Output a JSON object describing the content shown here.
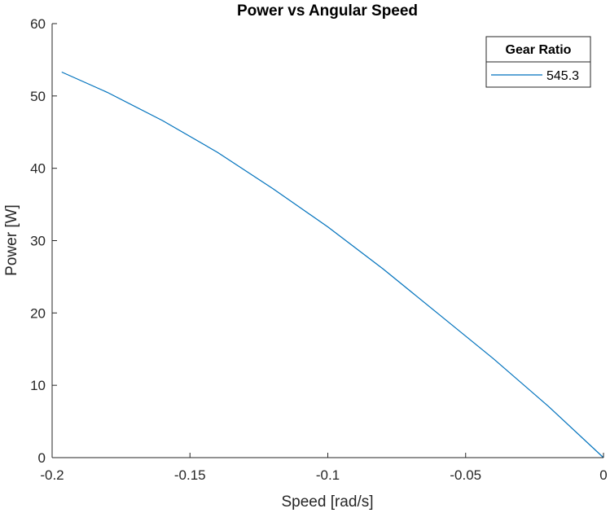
{
  "chart_data": {
    "type": "line",
    "title": "Power vs Angular Speed",
    "xlabel": "Speed [rad/s]",
    "ylabel": "Power [W]",
    "xlim": [
      -0.2,
      0
    ],
    "ylim": [
      0,
      60
    ],
    "xticks": [
      "-0.2",
      "-0.15",
      "-0.1",
      "-0.05",
      "0"
    ],
    "yticks": [
      "0",
      "10",
      "20",
      "30",
      "40",
      "50",
      "60"
    ],
    "grid": false,
    "legend": {
      "title": "Gear Ratio",
      "placement": "top-right"
    },
    "series": [
      {
        "name": "545.3",
        "color": "#0072BD",
        "x": [
          -0.1965,
          -0.18,
          -0.16,
          -0.14,
          -0.12,
          -0.1,
          -0.08,
          -0.06,
          -0.04,
          -0.02,
          0
        ],
        "y": [
          53.3,
          50.5,
          46.6,
          42.2,
          37.2,
          31.9,
          26.1,
          19.9,
          13.7,
          7.1,
          0
        ]
      }
    ]
  }
}
